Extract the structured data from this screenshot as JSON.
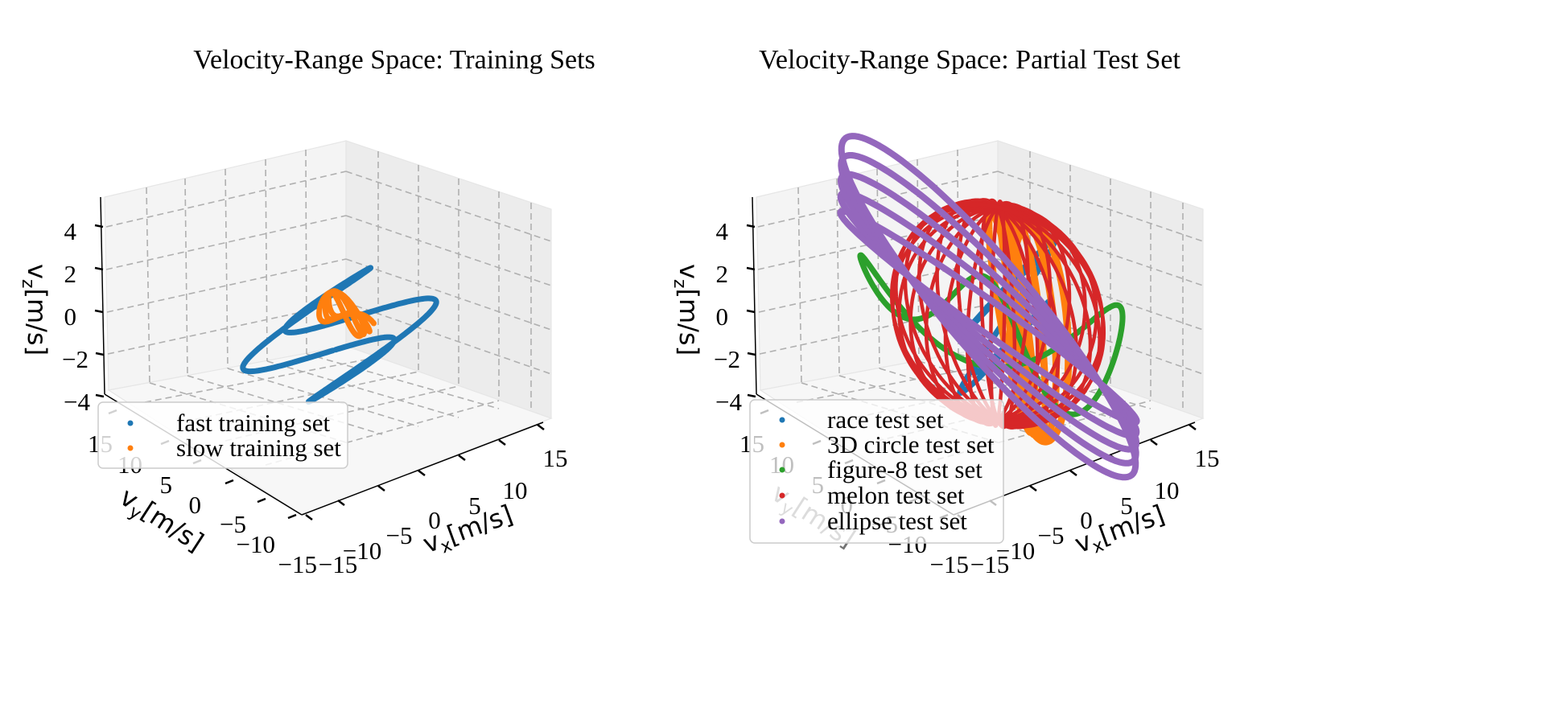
{
  "chart_data": [
    {
      "type": "line",
      "subtype": "3d-trajectory",
      "title": "Velocity-Range Space: Training Sets",
      "xlabel": "vₓ[m/s]",
      "ylabel": "vᵧ[m/s]",
      "zlabel": "v_z[m/s]",
      "xlabel_main": "v",
      "xlabel_sub": "x",
      "xlabel_unit": "[m/s]",
      "ylabel_main": "v",
      "ylabel_sub": "y",
      "ylabel_unit": "[m/s]",
      "zlabel_main": "v",
      "zlabel_sub": "z",
      "zlabel_unit": "[m/s]",
      "x_ticks": [
        "−15",
        "−10",
        "−5",
        "0",
        "5",
        "10",
        "15"
      ],
      "y_ticks": [
        "−15",
        "−10",
        "−5",
        "0",
        "5",
        "10",
        "15"
      ],
      "z_ticks": [
        "−4",
        "−2",
        "0",
        "2",
        "4"
      ],
      "xlim": [
        -15,
        15
      ],
      "ylim": [
        -15,
        15
      ],
      "zlim": [
        -4,
        5
      ],
      "grid": true,
      "legend_position": "lower-left",
      "series": [
        {
          "name": "fast training set",
          "color": "#1f77b4",
          "shape": "tangled-loop",
          "vx_range": [
            -12,
            14
          ],
          "vy_range": [
            -6,
            12
          ],
          "vz_range": [
            -3,
            2
          ]
        },
        {
          "name": "slow training set",
          "color": "#ff7f0e",
          "shape": "small-loop",
          "vx_range": [
            -3,
            3
          ],
          "vy_range": [
            -2,
            2
          ],
          "vz_range": [
            -0.5,
            0.5
          ]
        }
      ]
    },
    {
      "type": "line",
      "subtype": "3d-trajectory",
      "title": "Velocity-Range Space: Partial Test Set",
      "xlabel": "vₓ[m/s]",
      "ylabel": "vᵧ[m/s]",
      "zlabel": "v_z[m/s]",
      "xlabel_main": "v",
      "xlabel_sub": "x",
      "xlabel_unit": "[m/s]",
      "ylabel_main": "v",
      "ylabel_sub": "y",
      "ylabel_unit": "[m/s]",
      "zlabel_main": "v",
      "zlabel_sub": "z",
      "zlabel_unit": "[m/s]",
      "x_ticks": [
        "−15",
        "−10",
        "−5",
        "0",
        "5",
        "10",
        "15"
      ],
      "y_ticks": [
        "−15",
        "−10",
        "−5",
        "0",
        "5",
        "10",
        "15"
      ],
      "z_ticks": [
        "−4",
        "−2",
        "0",
        "2",
        "4"
      ],
      "xlim": [
        -15,
        15
      ],
      "ylim": [
        -15,
        15
      ],
      "zlim": [
        -4,
        5
      ],
      "grid": true,
      "legend_position": "lower-left",
      "series": [
        {
          "name": "race test set",
          "color": "#1f77b4",
          "shape": "tangled-loop",
          "vx_range": [
            -8,
            10
          ],
          "vy_range": [
            -8,
            8
          ],
          "vz_range": [
            -3,
            3
          ]
        },
        {
          "name": "3D circle test set",
          "color": "#ff7f0e",
          "shape": "tilted-rings",
          "vx_range": [
            -10,
            10
          ],
          "vy_range": [
            -10,
            10
          ],
          "vz_range": [
            -4,
            4
          ]
        },
        {
          "name": "figure-8 test set",
          "color": "#2ca02c",
          "shape": "figure-8",
          "vx_range": [
            -12,
            14
          ],
          "vy_range": [
            -6,
            12
          ],
          "vz_range": [
            -2,
            2
          ]
        },
        {
          "name": "melon test set",
          "color": "#d62728",
          "shape": "melon",
          "vx_range": [
            -10,
            10
          ],
          "vy_range": [
            -10,
            10
          ],
          "vz_range": [
            -5,
            5
          ]
        },
        {
          "name": "ellipse test set",
          "color": "#9467bd",
          "shape": "ellipse",
          "vx_range": [
            -14,
            14
          ],
          "vy_range": [
            -10,
            10
          ],
          "vz_range": [
            -1,
            1
          ]
        }
      ]
    }
  ]
}
